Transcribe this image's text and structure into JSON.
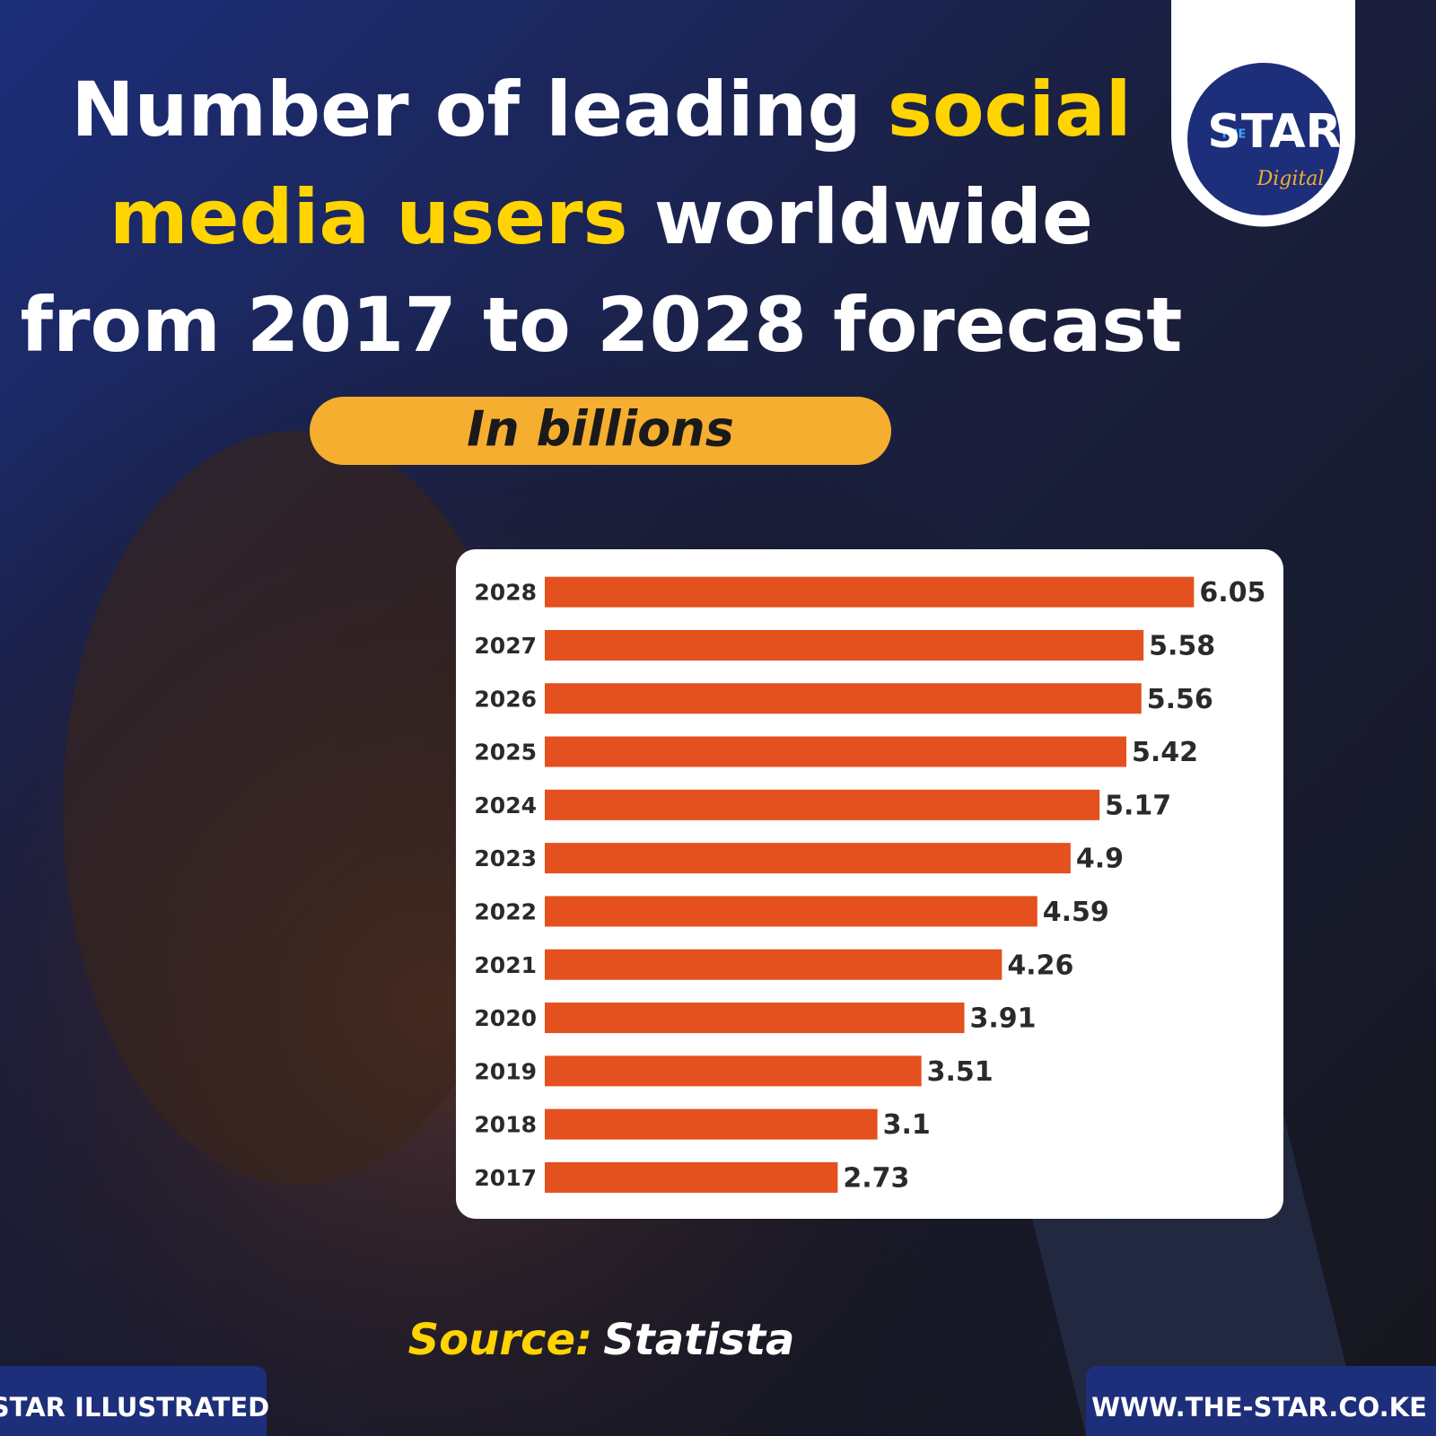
{
  "chart_data": {
    "type": "bar",
    "orientation": "horizontal",
    "title_lines": [
      [
        {
          "text": "Number of leading ",
          "color": "#ffffff"
        },
        {
          "text": "social",
          "color": "#ffd400"
        }
      ],
      [
        {
          "text": "media users",
          "color": "#ffd400"
        },
        {
          "text": " worldwide",
          "color": "#ffffff"
        }
      ],
      [
        {
          "text": "from 2017 to 2028 forecast",
          "color": "#ffffff"
        }
      ]
    ],
    "subtitle": "In billions",
    "categories": [
      "2028",
      "2027",
      "2026",
      "2025",
      "2024",
      "2023",
      "2022",
      "2021",
      "2020",
      "2019",
      "2018",
      "2017"
    ],
    "values": [
      6.05,
      5.58,
      5.56,
      5.42,
      5.17,
      4.9,
      4.59,
      4.26,
      3.91,
      3.51,
      3.1,
      2.73
    ],
    "color": "#e4501e",
    "xlim": [
      0,
      6.8
    ],
    "source_label": "Source:",
    "source": "Statista",
    "footer_left": "STAR ILLUSTRATED",
    "footer_right": "WWW.THE-STAR.CO.KE",
    "logo": {
      "small": "THE",
      "main": "STAR",
      "sub": "Digital"
    }
  }
}
